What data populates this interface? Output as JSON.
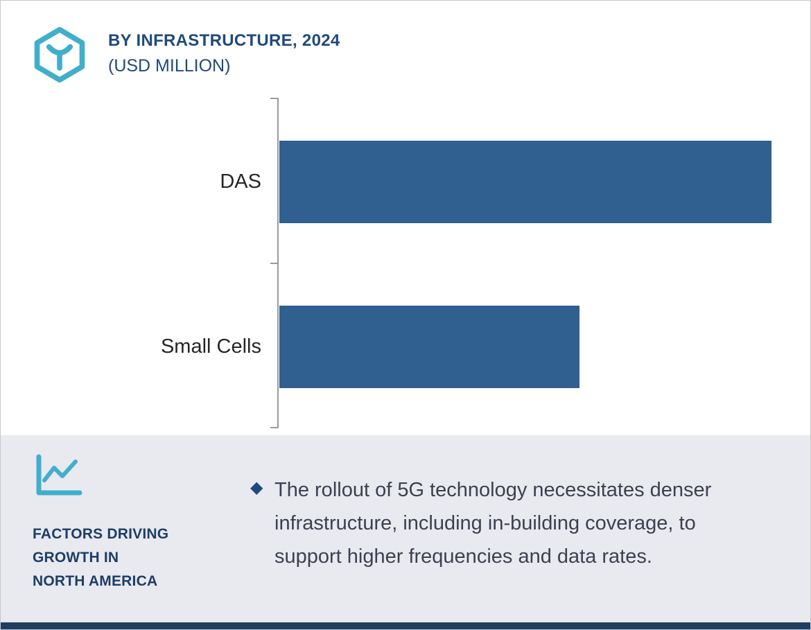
{
  "header": {
    "title": "BY INFRASTRUCTURE, 2024",
    "subtitle": "(USD MILLION)"
  },
  "chart_data": {
    "type": "bar",
    "orientation": "horizontal",
    "title": "BY INFRASTRUCTURE, 2024 (USD MILLION)",
    "categories": [
      "DAS",
      "Small Cells"
    ],
    "values": [
      100,
      61
    ],
    "value_labels_shown": false,
    "axis_numeric_labels": "none",
    "note": "No numeric axis or data labels are visible; values are relative estimates from bar lengths (DAS longest bar = 100).",
    "bar_color": "#2f608f",
    "legend": "none",
    "grid": false
  },
  "footer": {
    "heading_lines": [
      "FACTORS DRIVING",
      "GROWTH IN",
      "NORTH AMERICA"
    ],
    "bullet_glyph": "◆",
    "bullet_text": "The rollout of 5G technology necessitates denser infrastructure, including in-building coverage, to support higher frequencies and data rates."
  },
  "colors": {
    "accent_teal": "#41aecb",
    "navy": "#1f4a7c",
    "bar_blue": "#2f608f",
    "footer_bg": "#e9e9f0",
    "bottom_strip": "#1f3f62",
    "body_text": "#3c4150",
    "axis_gray": "#9b9b9b"
  }
}
